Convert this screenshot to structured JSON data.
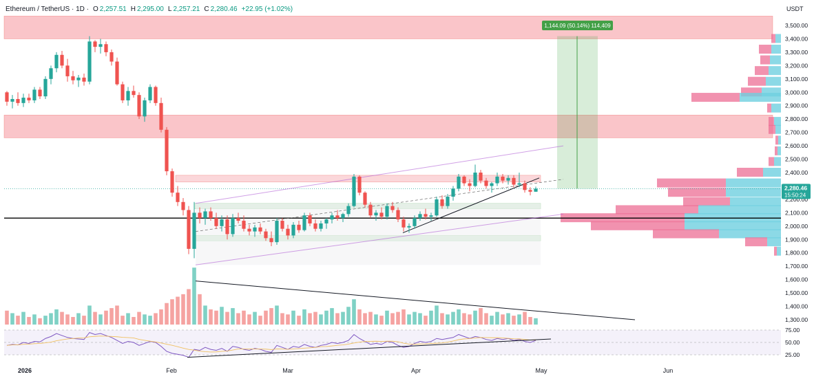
{
  "header": {
    "symbol": "Ethereum / TetherUS · 1D ·",
    "open_label": "O",
    "open": "2,257.51",
    "high_label": "H",
    "high": "2,295.00",
    "low_label": "L",
    "low": "2,257.21",
    "close_label": "C",
    "close": "2,280.46",
    "change": "+22.95 (+1.02%)"
  },
  "currency": "USDT",
  "price_tag": {
    "price": "2,280.46",
    "countdown": "15:50:24"
  },
  "measure_label": "1,144.09 (50.14%) 114,409",
  "colors": {
    "up": "#26a69a",
    "down": "#ef5350",
    "supply_zone": "#f7a6ac",
    "demand_zone": "#c8e6c9",
    "channel": "#b05fd6",
    "rsi": "#7e57c2"
  },
  "chart_data": [
    {
      "type": "candlestick",
      "price_axis": {
        "ylim": [
          1250,
          3600
        ],
        "ticks": [
          "3,500.00",
          "3,400.00",
          "3,300.00",
          "3,200.00",
          "3,100.00",
          "3,000.00",
          "2,900.00",
          "2,800.00",
          "2,700.00",
          "2,600.00",
          "2,500.00",
          "2,400.00",
          "2,300.00",
          "2,200.00",
          "2,100.00",
          "2,000.00",
          "1,900.00",
          "1,800.00",
          "1,700.00",
          "1,600.00",
          "1,500.00",
          "1,400.00",
          "1,300.00"
        ]
      },
      "time_axis": {
        "labels": [
          "2026",
          "Feb",
          "Mar",
          "Apr",
          "May",
          "Jun"
        ]
      },
      "candles_ohlc": [
        [
          3000,
          3010,
          2900,
          2930
        ],
        [
          2930,
          2980,
          2880,
          2950
        ],
        [
          2950,
          3000,
          2900,
          2920
        ],
        [
          2920,
          2990,
          2890,
          2960
        ],
        [
          2960,
          2990,
          2920,
          2940
        ],
        [
          2940,
          3040,
          2920,
          3020
        ],
        [
          3020,
          3040,
          2950,
          2970
        ],
        [
          2970,
          3120,
          2950,
          3100
        ],
        [
          3100,
          3200,
          3060,
          3180
        ],
        [
          3180,
          3300,
          3150,
          3280
        ],
        [
          3280,
          3310,
          3180,
          3200
        ],
        [
          3200,
          3250,
          3080,
          3120
        ],
        [
          3120,
          3160,
          3060,
          3090
        ],
        [
          3090,
          3130,
          3040,
          3110
        ],
        [
          3110,
          3140,
          3050,
          3080
        ],
        [
          3080,
          3420,
          3060,
          3380
        ],
        [
          3380,
          3390,
          3300,
          3340
        ],
        [
          3340,
          3400,
          3290,
          3360
        ],
        [
          3360,
          3380,
          3270,
          3300
        ],
        [
          3300,
          3320,
          3200,
          3230
        ],
        [
          3230,
          3260,
          3050,
          3060
        ],
        [
          3060,
          3080,
          2920,
          2940
        ],
        [
          2940,
          3040,
          2900,
          3010
        ],
        [
          3010,
          3050,
          2960,
          2980
        ],
        [
          2980,
          3000,
          2800,
          2820
        ],
        [
          2820,
          2960,
          2780,
          2940
        ],
        [
          2940,
          3060,
          2920,
          3040
        ],
        [
          3040,
          3050,
          2900,
          2920
        ],
        [
          2920,
          2960,
          2700,
          2720
        ],
        [
          2720,
          2740,
          2380,
          2410
        ],
        [
          2410,
          2430,
          2220,
          2250
        ],
        [
          2250,
          2300,
          2150,
          2180
        ],
        [
          2180,
          2210,
          2080,
          2120
        ],
        [
          2120,
          2150,
          1790,
          1830
        ],
        [
          1830,
          2180,
          1760,
          2100
        ],
        [
          2100,
          2140,
          2020,
          2060
        ],
        [
          2060,
          2130,
          2010,
          2110
        ],
        [
          2110,
          2140,
          2040,
          2060
        ],
        [
          2060,
          2100,
          1980,
          2000
        ],
        [
          2000,
          2080,
          1960,
          2050
        ],
        [
          2050,
          2080,
          1900,
          1940
        ],
        [
          1940,
          2090,
          1920,
          2060
        ],
        [
          2060,
          2100,
          2020,
          2040
        ],
        [
          2040,
          2080,
          1960,
          1980
        ],
        [
          1980,
          2010,
          1930,
          1960
        ],
        [
          1960,
          2010,
          1920,
          1990
        ],
        [
          1990,
          2020,
          1940,
          1960
        ],
        [
          1960,
          1980,
          1890,
          1910
        ],
        [
          1910,
          1960,
          1850,
          1880
        ],
        [
          1880,
          2060,
          1860,
          2040
        ],
        [
          2040,
          2060,
          1960,
          1980
        ],
        [
          1980,
          2010,
          1900,
          1930
        ],
        [
          1930,
          2030,
          1910,
          2010
        ],
        [
          2010,
          2040,
          1950,
          1970
        ],
        [
          1970,
          2100,
          1960,
          2080
        ],
        [
          2080,
          2100,
          2000,
          2020
        ],
        [
          2020,
          2050,
          1960,
          1980
        ],
        [
          1980,
          2040,
          1960,
          2020
        ],
        [
          2020,
          2060,
          1980,
          2050
        ],
        [
          2050,
          2100,
          2020,
          2080
        ],
        [
          2080,
          2120,
          2040,
          2060
        ],
        [
          2060,
          2100,
          2030,
          2090
        ],
        [
          2090,
          2170,
          2070,
          2150
        ],
        [
          2150,
          2390,
          2140,
          2370
        ],
        [
          2370,
          2380,
          2230,
          2250
        ],
        [
          2250,
          2260,
          2140,
          2160
        ],
        [
          2160,
          2180,
          2060,
          2080
        ],
        [
          2080,
          2120,
          2040,
          2100
        ],
        [
          2100,
          2140,
          2050,
          2070
        ],
        [
          2070,
          2170,
          2050,
          2150
        ],
        [
          2150,
          2180,
          2100,
          2120
        ],
        [
          2120,
          2140,
          2030,
          2050
        ],
        [
          2050,
          2070,
          1960,
          1990
        ],
        [
          1990,
          2020,
          1950,
          2000
        ],
        [
          2000,
          2080,
          1980,
          2060
        ],
        [
          2060,
          2110,
          2040,
          2090
        ],
        [
          2090,
          2130,
          2050,
          2070
        ],
        [
          2070,
          2100,
          2040,
          2080
        ],
        [
          2080,
          2220,
          2070,
          2200
        ],
        [
          2200,
          2230,
          2130,
          2150
        ],
        [
          2150,
          2240,
          2130,
          2220
        ],
        [
          2220,
          2300,
          2190,
          2280
        ],
        [
          2280,
          2390,
          2260,
          2370
        ],
        [
          2370,
          2380,
          2300,
          2320
        ],
        [
          2320,
          2350,
          2260,
          2300
        ],
        [
          2300,
          2460,
          2290,
          2400
        ],
        [
          2400,
          2420,
          2320,
          2340
        ],
        [
          2340,
          2360,
          2280,
          2300
        ],
        [
          2300,
          2330,
          2250,
          2320
        ],
        [
          2320,
          2400,
          2300,
          2370
        ],
        [
          2370,
          2390,
          2320,
          2340
        ],
        [
          2340,
          2380,
          2310,
          2360
        ],
        [
          2360,
          2380,
          2290,
          2310
        ],
        [
          2310,
          2400,
          2290,
          2320
        ],
        [
          2320,
          2340,
          2250,
          2270
        ],
        [
          2270,
          2290,
          2230,
          2257
        ],
        [
          2257,
          2295,
          2257,
          2280
        ]
      ],
      "volume": [
        22,
        18,
        14,
        20,
        12,
        16,
        10,
        14,
        18,
        24,
        20,
        16,
        12,
        18,
        14,
        30,
        20,
        16,
        22,
        26,
        30,
        14,
        18,
        12,
        20,
        16,
        14,
        18,
        24,
        34,
        40,
        44,
        48,
        56,
        90,
        48,
        30,
        24,
        22,
        28,
        20,
        26,
        18,
        22,
        16,
        20,
        14,
        22,
        26,
        30,
        18,
        16,
        22,
        14,
        24,
        18,
        20,
        16,
        22,
        26,
        18,
        20,
        28,
        40,
        24,
        18,
        20,
        16,
        14,
        22,
        18,
        20,
        24,
        16,
        20,
        18,
        14,
        22,
        30,
        18,
        16,
        20,
        24,
        18,
        16,
        22,
        26,
        18,
        14,
        20,
        16,
        18,
        14,
        16,
        20,
        12,
        10
      ],
      "horizontal_line": 2060,
      "supply_zones": [
        [
          3400,
          3570
        ],
        [
          2660,
          2830
        ],
        [
          2330,
          2380
        ]
      ],
      "demand_zones": [
        [
          2130,
          2170
        ],
        [
          1890,
          1930
        ]
      ],
      "long_position": {
        "entry": 2280,
        "target": 3420,
        "label": "1,144.09 (50.14%) 114,409"
      },
      "volume_profile": [
        {
          "price": 3400,
          "up": 8,
          "down": 6
        },
        {
          "price": 3320,
          "up": 14,
          "down": 18
        },
        {
          "price": 3240,
          "up": 16,
          "down": 14
        },
        {
          "price": 3160,
          "up": 18,
          "down": 20
        },
        {
          "price": 3080,
          "up": 22,
          "down": 26
        },
        {
          "price": 3000,
          "up": 28,
          "down": 30
        },
        {
          "price": 2960,
          "up": 60,
          "down": 70
        },
        {
          "price": 2880,
          "up": 14,
          "down": 6
        },
        {
          "price": 2780,
          "up": 10,
          "down": 8
        },
        {
          "price": 2720,
          "up": 8,
          "down": 10
        },
        {
          "price": 2640,
          "up": 4,
          "down": 4
        },
        {
          "price": 2560,
          "up": 5,
          "down": 4
        },
        {
          "price": 2480,
          "up": 10,
          "down": 8
        },
        {
          "price": 2400,
          "up": 26,
          "down": 38
        },
        {
          "price": 2320,
          "up": 80,
          "down": 100
        },
        {
          "price": 2250,
          "up": 80,
          "down": 84
        },
        {
          "price": 2180,
          "up": 74,
          "down": 68
        },
        {
          "price": 2120,
          "up": 120,
          "down": 120
        },
        {
          "price": 2060,
          "up": 140,
          "down": 180
        },
        {
          "price": 2000,
          "up": 140,
          "down": 136
        },
        {
          "price": 1940,
          "up": 90,
          "down": 96
        },
        {
          "price": 1880,
          "up": 20,
          "down": 32
        },
        {
          "price": 1810,
          "up": 6,
          "down": 4
        }
      ]
    },
    {
      "type": "line",
      "name": "RSI",
      "ylim": [
        20,
        80
      ],
      "ticks": [
        "75.00",
        "50.00",
        "25.00"
      ],
      "values": [
        44,
        46,
        45,
        50,
        48,
        52,
        51,
        58,
        62,
        68,
        64,
        60,
        58,
        57,
        56,
        70,
        66,
        68,
        64,
        60,
        54,
        48,
        52,
        50,
        44,
        48,
        52,
        50,
        42,
        32,
        28,
        26,
        24,
        20,
        36,
        34,
        40,
        36,
        34,
        38,
        32,
        42,
        40,
        36,
        34,
        38,
        36,
        32,
        30,
        44,
        40,
        36,
        42,
        40,
        46,
        42,
        40,
        44,
        46,
        50,
        48,
        50,
        54,
        66,
        58,
        52,
        46,
        48,
        46,
        52,
        50,
        44,
        40,
        42,
        48,
        52,
        50,
        52,
        58,
        56,
        58,
        60,
        66,
        62,
        58,
        62,
        60,
        56,
        54,
        58,
        56,
        58,
        54,
        56,
        52,
        50,
        54
      ]
    }
  ]
}
